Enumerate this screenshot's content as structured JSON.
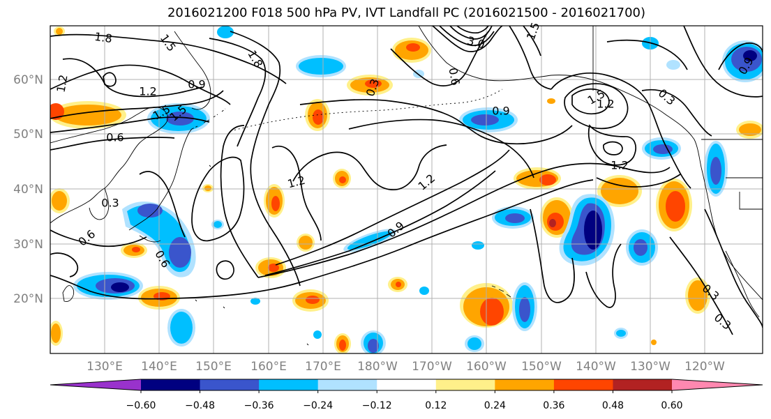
{
  "title": "2016021200 F018 500 hPa PV, IVT Landfall PC (2016021500 - 2016021700)",
  "colors": {
    "frame": "#000000",
    "grid": "#b0b0b0",
    "tick_label": "#808080",
    "contour": "#000000",
    "coast": "#000000"
  },
  "axes": {
    "lat_labels": [
      "20°N",
      "30°N",
      "40°N",
      "50°N",
      "60°N"
    ],
    "lon_labels": [
      "130°E",
      "140°E",
      "150°E",
      "160°E",
      "170°E",
      "180°W",
      "170°W",
      "160°W",
      "150°W",
      "140°W",
      "130°W",
      "120°W"
    ]
  },
  "colorbar": {
    "colors": [
      "#9932cc",
      "#000080",
      "#3a55cc",
      "#00bfff",
      "#b0e2ff",
      "#ffffff",
      "#fff08a",
      "#ffa500",
      "#ff4500",
      "#b22222",
      "#ff88b0"
    ],
    "tick_labels": [
      "−0.60",
      "−0.48",
      "−0.36",
      "−0.24",
      "−0.12",
      "0.12",
      "0.24",
      "0.36",
      "0.48",
      "0.60"
    ],
    "extend": "both"
  },
  "contour_labels": [
    "1.8",
    "1.5",
    "1.8",
    "1.2",
    "1.2",
    "0.9",
    "1.5",
    "0.6",
    "0.3",
    "0.6",
    "0.6",
    "1.2",
    "0.9",
    "1.2",
    "0.3",
    "3.0",
    "1.5",
    "0.6",
    "0.9",
    "1.5",
    "1.2",
    "0.3",
    "1.2",
    "0.3",
    "0.3",
    "0.9",
    "1.5"
  ]
}
